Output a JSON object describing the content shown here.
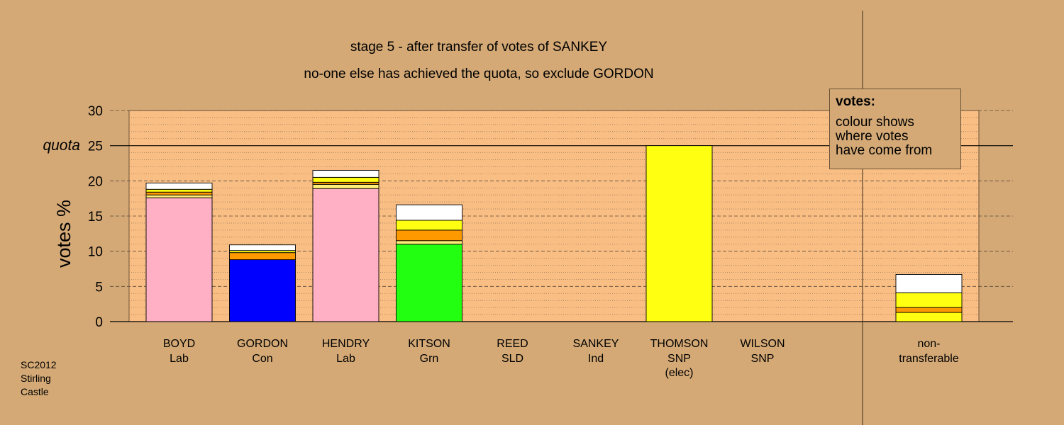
{
  "titles": {
    "line1": "stage 5 - after transfer of votes of SANKEY",
    "line2": "no-one else has achieved the quota, so exclude GORDON"
  },
  "legend": {
    "title": "votes:",
    "lines": [
      "colour shows",
      "where votes",
      "have come from"
    ]
  },
  "footnote": [
    "SC2012",
    "Stirling",
    "Castle"
  ],
  "colors": {
    "background": "#d4a976",
    "plot_area": "#f9be84",
    "Lab": "#ffb0c4",
    "Con": "#0000ff",
    "Grn": "#22ff11",
    "SNP": "#ffff11",
    "SLD": "#ff9900",
    "Ind": "#ffffff",
    "orange_transfer": "#ff9900",
    "light_yellow": "#ffee77"
  },
  "chart_data": {
    "type": "bar",
    "stacked": true,
    "ylabel": "votes %",
    "ylim": [
      0,
      30
    ],
    "yticks": [
      "0",
      "5",
      "10",
      "15",
      "20",
      "25",
      "30"
    ],
    "quota": {
      "label": "quota",
      "value": 25
    },
    "grid": "dashed major every 5, dotted minor every 1",
    "candidates": [
      {
        "name": "BOYD",
        "party": "Lab",
        "extra": "",
        "segments": [
          {
            "color": "#ffb0c4",
            "value": 17.6
          },
          {
            "color": "#ffee77",
            "value": 0.4
          },
          {
            "color": "#ff9900",
            "value": 0.4
          },
          {
            "color": "#ffff11",
            "value": 0.4
          },
          {
            "color": "#ffffff",
            "value": 0.9
          }
        ]
      },
      {
        "name": "GORDON",
        "party": "Con",
        "extra": "",
        "segments": [
          {
            "color": "#0000ff",
            "value": 8.8
          },
          {
            "color": "#ff9900",
            "value": 1.0
          },
          {
            "color": "#ffff11",
            "value": 0.3
          },
          {
            "color": "#ffffff",
            "value": 0.8
          }
        ]
      },
      {
        "name": "HENDRY",
        "party": "Lab",
        "extra": "",
        "segments": [
          {
            "color": "#ffb0c4",
            "value": 18.9
          },
          {
            "color": "#ffee77",
            "value": 0.6
          },
          {
            "color": "#ff9900",
            "value": 0.3
          },
          {
            "color": "#ffff11",
            "value": 0.7
          },
          {
            "color": "#ffffff",
            "value": 1.0
          }
        ]
      },
      {
        "name": "KITSON",
        "party": "Grn",
        "extra": "",
        "segments": [
          {
            "color": "#22ff11",
            "value": 11.0
          },
          {
            "color": "#ffee77",
            "value": 0.5
          },
          {
            "color": "#ff9900",
            "value": 1.5
          },
          {
            "color": "#ffff11",
            "value": 1.4
          },
          {
            "color": "#ffffff",
            "value": 2.2
          }
        ]
      },
      {
        "name": "REED",
        "party": "SLD",
        "extra": "",
        "segments": []
      },
      {
        "name": "SANKEY",
        "party": "Ind",
        "extra": "",
        "segments": []
      },
      {
        "name": "THOMSON",
        "party": "SNP",
        "extra": "(elec)",
        "segments": [
          {
            "color": "#ffff11",
            "value": 25.0
          }
        ]
      },
      {
        "name": "WILSON",
        "party": "SNP",
        "extra": "",
        "segments": []
      }
    ],
    "non_transferable": {
      "label_line1": "non-",
      "label_line2": "transferable",
      "segments": [
        {
          "color": "#ffff11",
          "value": 1.3
        },
        {
          "color": "#ff9900",
          "value": 0.7
        },
        {
          "color": "#ffff11",
          "value": 2.1
        },
        {
          "color": "#ffffff",
          "value": 2.6
        }
      ]
    }
  }
}
